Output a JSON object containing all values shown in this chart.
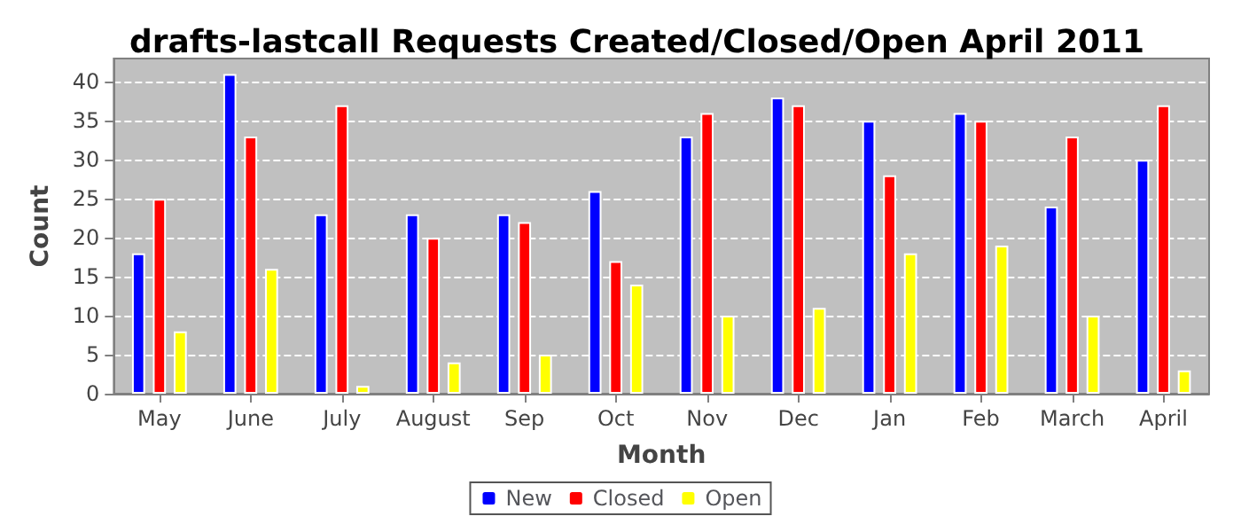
{
  "chart_data": {
    "type": "bar",
    "title": "drafts-lastcall Requests Created/Closed/Open April 2011",
    "xlabel": "Month",
    "ylabel": "Count",
    "categories": [
      "May",
      "June",
      "July",
      "August",
      "Sep",
      "Oct",
      "Nov",
      "Dec",
      "Jan",
      "Feb",
      "March",
      "April"
    ],
    "series": [
      {
        "name": "New",
        "color": "#0000ff",
        "values": [
          18,
          41,
          23,
          23,
          23,
          26,
          33,
          38,
          35,
          36,
          24,
          30
        ]
      },
      {
        "name": "Closed",
        "color": "#ff0000",
        "values": [
          25,
          33,
          37,
          20,
          22,
          17,
          36,
          37,
          28,
          35,
          33,
          37
        ]
      },
      {
        "name": "Open",
        "color": "#ffff00",
        "values": [
          8,
          16,
          1,
          4,
          5,
          14,
          10,
          11,
          18,
          19,
          10,
          3
        ]
      }
    ],
    "ylim": [
      0,
      43
    ],
    "yticks": [
      0,
      5,
      10,
      15,
      20,
      25,
      30,
      35,
      40
    ],
    "grid": "y",
    "legend": "bottom"
  }
}
